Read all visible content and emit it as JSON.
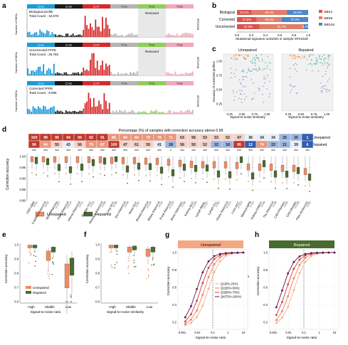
{
  "panel_letters": [
    "a",
    "b",
    "c",
    "d",
    "e",
    "f",
    "g",
    "h"
  ],
  "colors": {
    "ca": "#1d9ad6",
    "cg": "#1a1a1a",
    "ct": "#d62a2a",
    "ta": "#b5b5b5",
    "tc": "#8fcf5a",
    "tg": "#f0a8bc",
    "sbs1": "#d9534f",
    "sbs5": "#e07e6a",
    "sbs18": "#4f86c6",
    "unrepaired": "#f08c62",
    "repaired": "#4a6b2f",
    "high": "#f08c3a",
    "middle": "#4fb89a",
    "low": "#8e86c8"
  },
  "panel_a": {
    "sub_categories": [
      "C>A",
      "C>G",
      "C>T",
      "T>A",
      "T>C",
      "T>G"
    ],
    "removed_label": "Removed",
    "y_axis_label": "Number of SBSs",
    "profiles": [
      {
        "name": "Biological profile",
        "count": "Total Count : 10,678",
        "sample": "SP21528",
        "removed": "T>C"
      },
      {
        "name": "Uncorrected FFPE",
        "count": "Total Count : 26,782",
        "sample": "SP21528",
        "removed": "T>C"
      },
      {
        "name": "Corrected FFPE",
        "count": "Total Count : 9,096",
        "sample": "SP21528",
        "removed": "none"
      }
    ]
  },
  "panel_b": {
    "rows": [
      {
        "label": "Biological",
        "segments": [
          {
            "sig": "SBS1",
            "pct": "20.8%",
            "value": 0.208
          },
          {
            "sig": "SBS5",
            "pct": "49.3%",
            "value": 0.493
          },
          {
            "sig": "SBS18",
            "pct": "29.9%",
            "value": 0.299
          }
        ]
      },
      {
        "label": "Corrected",
        "segments": [
          {
            "sig": "SBS1",
            "pct": "27.8%",
            "value": 0.278
          },
          {
            "sig": "SBS5",
            "pct": "35.2%",
            "value": 0.352
          },
          {
            "sig": "SBS18",
            "pct": "37.0%",
            "value": 0.37
          }
        ]
      },
      {
        "label": "Uncorrected",
        "segments": [
          {
            "sig": "SBS1",
            "pct": "31.9%",
            "value": 0.319
          },
          {
            "sig": "SBS5",
            "pct": "61.7%",
            "value": 0.617
          },
          {
            "sig": "SBS18",
            "pct": "6.4%",
            "value": 0.064
          }
        ]
      }
    ],
    "x_ticks": [
      "0.0",
      "0.2",
      "0.4",
      "0.6",
      "0.8",
      "1.0"
    ],
    "x_label": "Mutational signature activities in sample SP21528",
    "legend": [
      "SBS1",
      "SBS5",
      "SBS18"
    ]
  },
  "panel_c": {
    "titles": [
      "Unrepaired",
      "Repaired"
    ],
    "x_ticks": [
      "0.25",
      "0.50",
      "0.75",
      "1.00"
    ],
    "x_label": "Signal-to-noise similarity",
    "y_ticks": [
      "0.25",
      "0.50",
      "0.75",
      "1.00"
    ],
    "y_label": "Accuracy of corrected profiles",
    "legend_title": "Signal-to-noise ratio",
    "legend": [
      "High",
      "Middle",
      "Low"
    ]
  },
  "panel_d": {
    "title": "Percentage (%) of samples with correction accuracy above 0.99",
    "row_labels": [
      "Unrepaired",
      "Repaired"
    ],
    "unrepaired": [
      100,
      98,
      95,
      94,
      94,
      92,
      91,
      85,
      84,
      84,
      79,
      78,
      71,
      63,
      56,
      53,
      53,
      52,
      47,
      36,
      34,
      34,
      25,
      25,
      1
    ],
    "repaired": [
      90,
      84,
      55,
      43,
      56,
      79,
      87,
      100,
      47,
      61,
      59,
      41,
      28,
      56,
      50,
      52,
      22,
      18,
      95,
      12,
      74,
      22,
      21,
      39,
      6
    ],
    "stars": [
      "***",
      "***",
      "***",
      "***",
      "***",
      "***",
      "***",
      "***",
      "***",
      "***",
      "***",
      "***",
      "*",
      "***",
      "***",
      "***",
      "***",
      "***",
      "***",
      "***",
      "***",
      "***",
      "***",
      "***",
      "***"
    ],
    "cancer_types": [
      "CNS-GBM",
      "ColoRect-AdenoCA",
      "Skin-Melanoma",
      "Panc-AdenoCA",
      "Uterus-AdenoCA",
      "Bladder-TCC",
      "Stomach-AdenoCA",
      "Lung-SCC",
      "Eso-AdenoCA",
      "Head-SCC",
      "Breast-AdenoCA",
      "Biliary-AdenoCA",
      "Prost-AdenoCA",
      "Bone-Osteosarc",
      "Kidney-RCC",
      "Lymph-BNHL",
      "Lymph-CLL",
      "Ovary-AdenoCA",
      "Liver-HCC",
      "Myeloid-MPN",
      "Kidney-ChRCC",
      "Thy-AdenoCA",
      "CNS-PiloAstro",
      "CNS-Medullo",
      "Panc-Endocrine"
    ],
    "n_values": [
      "n=41",
      "n=52",
      "n=107",
      "n=214",
      "n=51",
      "n=23",
      "n=68",
      "n=48",
      "n=98",
      "n=57",
      "n=198",
      "n=35",
      "n=199",
      "n=38",
      "n=144",
      "n=107",
      "n=95",
      "n=113",
      "n=314",
      "n=23",
      "n=44",
      "n=48",
      "n=89",
      "n=146",
      "n=85"
    ],
    "y_ticks": [
      "1.00",
      "0.95",
      "0.90",
      "0.85",
      "0.80"
    ],
    "y_label": "Correction accuracy",
    "legend": [
      "Unrepaired",
      "Repaired"
    ]
  },
  "panel_e": {
    "groups": [
      "High",
      "Middle",
      "Low"
    ],
    "x_label": "Signal-to-noise ratio",
    "y_ticks": [
      "1.0",
      "0.9",
      "0.8",
      "0.7",
      "0.6"
    ],
    "y_label": "Correction accuracy",
    "legend": [
      "Unrepaired",
      "Repaired"
    ]
  },
  "panel_f": {
    "groups": [
      "High",
      "Middle",
      "Low"
    ],
    "x_label": "Signal-to-noise similarity",
    "y_ticks": [
      "1.0",
      "0.9",
      "0.8",
      "0.7",
      "0.6"
    ],
    "y_label": "Correction accuracy"
  },
  "panel_g": {
    "title": "Unrepaired",
    "x_ticks": [
      "0.001",
      "0.01",
      "0.1",
      "1",
      "10"
    ],
    "x_label": "Signal-to-noise ratio",
    "y_ticks": [
      "1.0",
      "0.8",
      "0.6",
      "0.4",
      "0.2"
    ],
    "y_label": "Correction accuracy",
    "legend_title": "Mutation load quartiles",
    "legend": [
      "Q1(0%-25%)",
      "Q2(25%-50%)",
      "Q3(50%-75%)",
      "Q4(75%-100%)"
    ]
  },
  "panel_h": {
    "title": "Repaired",
    "x_ticks": [
      "0.001",
      "0.01",
      "0.1",
      "1",
      "10"
    ],
    "x_label": "Signal-to-noise ratio",
    "y_ticks": [
      "1.0",
      "0.8",
      "0.6",
      "0.4",
      "0.2"
    ],
    "y_label": "Correction accuracy"
  }
}
